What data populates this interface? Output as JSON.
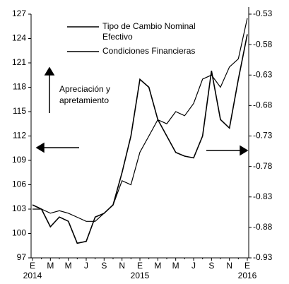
{
  "chart_data": {
    "type": "line",
    "categories": [
      "E",
      null,
      "M",
      null,
      "M",
      null,
      "J",
      null,
      "S",
      null,
      "N",
      null,
      "E",
      null,
      "M",
      null,
      "M",
      null,
      "J",
      null,
      "S",
      null,
      "N",
      null,
      "E"
    ],
    "year_labels": [
      "2014",
      "2015",
      "2016"
    ],
    "annotation": [
      "Apreciación y",
      "apretamiento"
    ],
    "ylim": [
      97,
      127
    ],
    "yticks": [
      97,
      100,
      103,
      106,
      109,
      112,
      115,
      118,
      121,
      124,
      127
    ],
    "y2lim": [
      -0.93,
      -0.53
    ],
    "y2ticks": [
      -0.93,
      -0.88,
      -0.83,
      -0.78,
      -0.73,
      -0.68,
      -0.63,
      -0.58,
      -0.53
    ],
    "series": [
      {
        "name": "Tipo de Cambio Nominal Efectivo",
        "color": "#000000",
        "values": [
          103,
          103,
          102.5,
          102.8,
          102.5,
          102,
          101.5,
          101.5,
          102.5,
          103.5,
          106.5,
          106,
          110,
          112,
          114,
          113.5,
          115,
          114.5,
          116,
          119,
          119.5,
          118,
          120.5,
          121.5,
          126.5
        ]
      },
      {
        "name": "Condiciones Financieras",
        "color": "#000000",
        "axis": "y2",
        "values": [
          -0.843,
          -0.85,
          -0.879,
          -0.863,
          -0.87,
          -0.906,
          -0.903,
          -0.863,
          -0.857,
          -0.843,
          -0.79,
          -0.73,
          -0.637,
          -0.65,
          -0.703,
          -0.73,
          -0.757,
          -0.763,
          -0.766,
          -0.73,
          -0.623,
          -0.703,
          -0.717,
          -0.637,
          -0.563
        ]
      }
    ]
  }
}
